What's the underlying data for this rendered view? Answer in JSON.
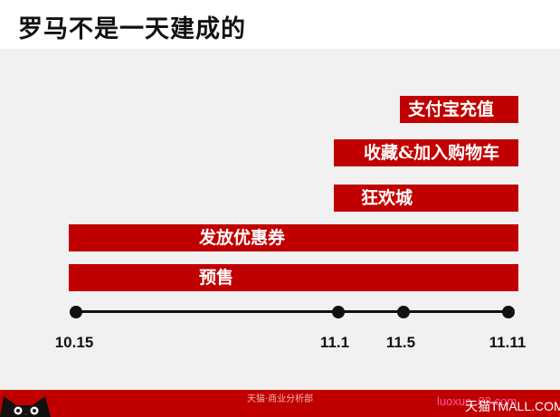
{
  "title": "罗马不是一天建成的",
  "bars": [
    {
      "label": "支付宝充值"
    },
    {
      "label": "收藏&加入购物车"
    },
    {
      "label": "狂欢城"
    },
    {
      "label": "发放优惠券"
    },
    {
      "label": "预售"
    }
  ],
  "timeline": {
    "dates": [
      "10.15",
      "11.1",
      "11.5",
      "11.11"
    ]
  },
  "footer": {
    "center_text": "天猫·商业分析部",
    "watermark": "luoxue .23.com",
    "brand": "天猫TMALL.COM"
  },
  "colors": {
    "accent": "#c00000",
    "background": "#f1f1f1",
    "line": "#111111"
  }
}
